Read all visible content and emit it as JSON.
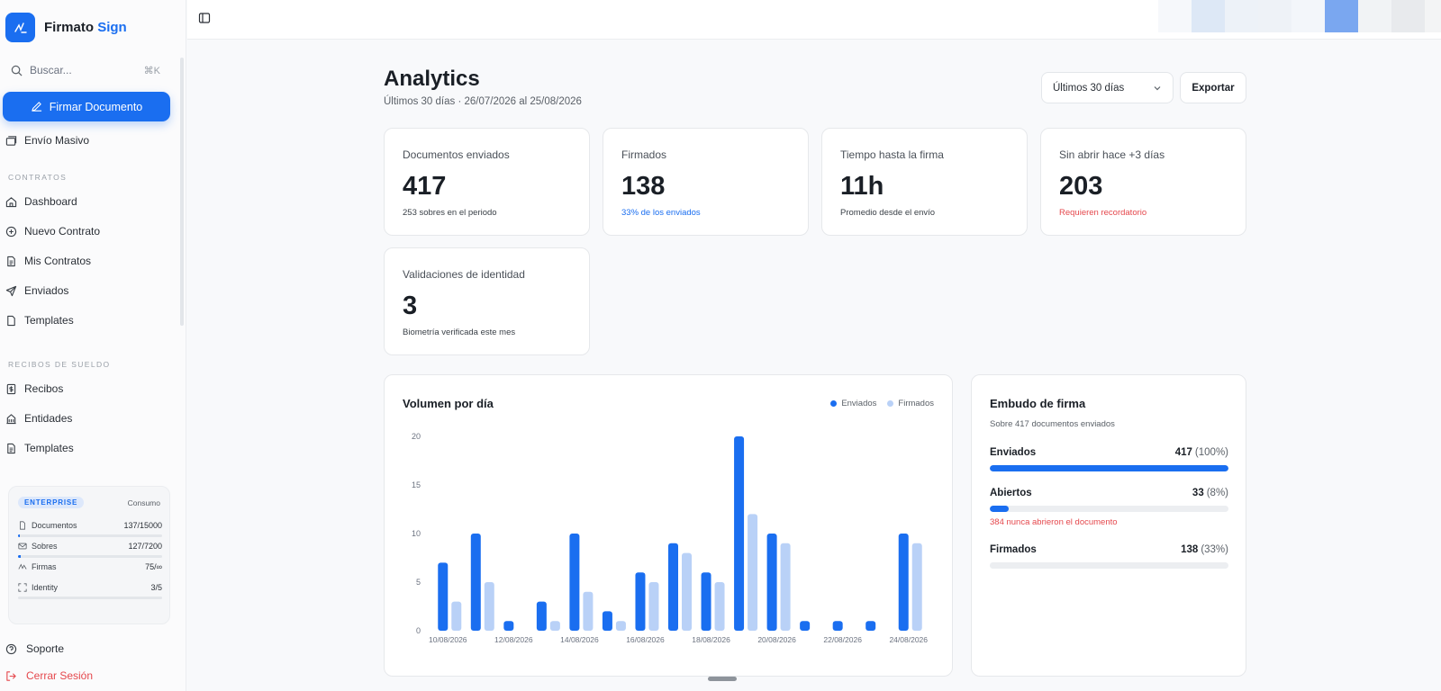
{
  "brand": {
    "name": "Firmato",
    "accent": "Sign"
  },
  "search": {
    "placeholder": "Buscar...",
    "shortcut": "⌘K"
  },
  "sidebar": {
    "primary_action": "Firmar Documento",
    "bulk_send": "Envío Masivo",
    "sections": [
      {
        "title": "CONTRATOS",
        "items": [
          "Dashboard",
          "Nuevo Contrato",
          "Mis Contratos",
          "Enviados",
          "Templates"
        ]
      },
      {
        "title": "RECIBOS DE SUELDO",
        "items": [
          "Recibos",
          "Entidades",
          "Templates"
        ]
      }
    ],
    "plan": {
      "badge": "ENTERPRISE",
      "consumo_label": "Consumo",
      "usage": [
        {
          "label": "Documentos",
          "value": "137/15000",
          "fraction": 0.009
        },
        {
          "label": "Sobres",
          "value": "127/7200",
          "fraction": 0.018
        },
        {
          "label": "Firmas",
          "value": "75/∞",
          "fraction": 0
        },
        {
          "label": "Identity",
          "value": "3/5",
          "fraction": 0
        }
      ]
    },
    "support": "Soporte",
    "logout": "Cerrar Sesión"
  },
  "header": {
    "title": "Analytics",
    "subtitle": "Últimos 30 días · 26/07/2026 al 25/08/2026",
    "range_select": "Últimos 30 días",
    "export_label": "Exportar"
  },
  "colors": {
    "accent": "#1a6ef0",
    "accent_light": "#b9d1f7",
    "danger": "#e5484d",
    "tiles": [
      "#f6f8fb",
      "#dde8f6",
      "#edf2f8",
      "#eef2f7",
      "#f3f6fa",
      "#7aa7f0",
      "#f1f3f5",
      "#e8eaed",
      "#f3f4f5"
    ]
  },
  "kpis": [
    {
      "label": "Documentos enviados",
      "value": "417",
      "note": "253 sobres en el periodo",
      "tone": "neutral"
    },
    {
      "label": "Firmados",
      "value": "138",
      "note": "33% de los enviados",
      "tone": "blue"
    },
    {
      "label": "Tiempo hasta la firma",
      "value": "11h",
      "note": "Promedio desde el envío",
      "tone": "neutral"
    },
    {
      "label": "Sin abrir hace +3 días",
      "value": "203",
      "note": "Requieren recordatorio",
      "tone": "red"
    },
    {
      "label": "Validaciones de identidad",
      "value": "3",
      "note": "Biometría verificada este mes",
      "tone": "neutral"
    }
  ],
  "chart": {
    "title": "Volumen por día",
    "legend": [
      "Enviados",
      "Firmados"
    ]
  },
  "chart_data": {
    "type": "bar",
    "categories": [
      "10/08/2026",
      "11/08/2026",
      "12/08/2026",
      "13/08/2026",
      "14/08/2026",
      "15/08/2026",
      "16/08/2026",
      "17/08/2026",
      "18/08/2026",
      "19/08/2026",
      "20/08/2026",
      "21/08/2026",
      "22/08/2026",
      "23/08/2026",
      "24/08/2026"
    ],
    "tick_labels": [
      "10/08/2026",
      "12/08/2026",
      "14/08/2026",
      "16/08/2026",
      "18/08/2026",
      "20/08/2026",
      "22/08/2026",
      "24/08/2026"
    ],
    "series": [
      {
        "name": "Enviados",
        "color": "#1a6ef0",
        "values": [
          7,
          10,
          1,
          3,
          10,
          2,
          6,
          9,
          6,
          20,
          10,
          1,
          1,
          1,
          10
        ]
      },
      {
        "name": "Firmados",
        "color": "#b9d1f7",
        "values": [
          3,
          5,
          0,
          1,
          4,
          1,
          5,
          8,
          5,
          12,
          9,
          0,
          0,
          0,
          9
        ]
      }
    ],
    "ylim": [
      0,
      20
    ],
    "yticks": [
      0,
      5,
      10,
      15,
      20
    ],
    "title": "Volumen por día",
    "legend_position": "top-right",
    "grid": false
  },
  "funnel": {
    "title": "Embudo de firma",
    "subtitle": "Sobre 417 documentos enviados",
    "rows": [
      {
        "name": "Enviados",
        "value": "417",
        "pct": "(100%)",
        "fraction": 1.0,
        "warning": ""
      },
      {
        "name": "Abiertos",
        "value": "33",
        "pct": "(8%)",
        "fraction": 0.08,
        "warning": "384 nunca abrieron el documento"
      },
      {
        "name": "Firmados",
        "value": "138",
        "pct": "(33%)",
        "fraction": 0.33,
        "warning": ""
      }
    ]
  }
}
